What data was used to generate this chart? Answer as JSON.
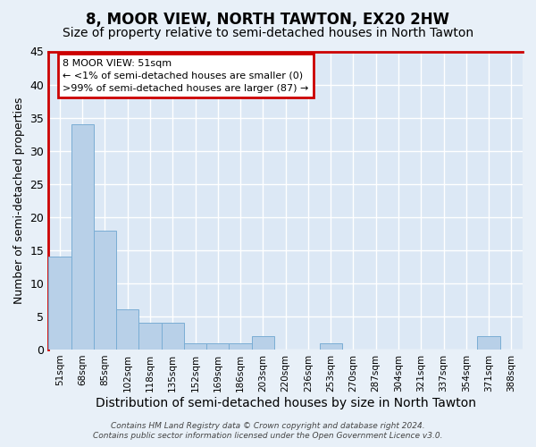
{
  "title": "8, MOOR VIEW, NORTH TAWTON, EX20 2HW",
  "subtitle": "Size of property relative to semi-detached houses in North Tawton",
  "xlabel": "Distribution of semi-detached houses by size in North Tawton",
  "ylabel": "Number of semi-detached properties",
  "categories": [
    "51sqm",
    "68sqm",
    "85sqm",
    "102sqm",
    "118sqm",
    "135sqm",
    "152sqm",
    "169sqm",
    "186sqm",
    "203sqm",
    "220sqm",
    "236sqm",
    "253sqm",
    "270sqm",
    "287sqm",
    "304sqm",
    "321sqm",
    "337sqm",
    "354sqm",
    "371sqm",
    "388sqm"
  ],
  "values": [
    14,
    34,
    18,
    6,
    4,
    4,
    1,
    1,
    1,
    2,
    0,
    0,
    1,
    0,
    0,
    0,
    0,
    0,
    0,
    2,
    0
  ],
  "bar_color": "#b8d0e8",
  "bar_edge_color": "#7aadd4",
  "ylim": [
    0,
    45
  ],
  "yticks": [
    0,
    5,
    10,
    15,
    20,
    25,
    30,
    35,
    40,
    45
  ],
  "background_color": "#e8f0f8",
  "plot_bg_color": "#dce8f5",
  "grid_color": "#ffffff",
  "annotation_line1": "8 MOOR VIEW: 51sqm",
  "annotation_line2": "← <1% of semi-detached houses are smaller (0)",
  "annotation_line3": ">99% of semi-detached houses are larger (87) →",
  "annotation_box_color": "#ffffff",
  "annotation_box_edge": "#cc0000",
  "red_border_color": "#cc0000",
  "footer": "Contains HM Land Registry data © Crown copyright and database right 2024.\nContains public sector information licensed under the Open Government Licence v3.0.",
  "title_fontsize": 12,
  "subtitle_fontsize": 10,
  "ylabel_fontsize": 9,
  "xlabel_fontsize": 10
}
